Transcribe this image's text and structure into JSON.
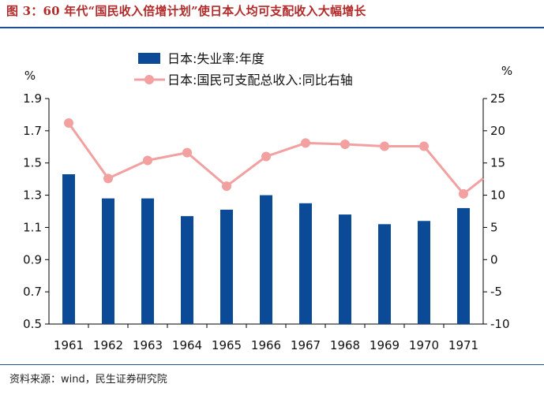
{
  "figure": {
    "title": "图 3：60 年代“国民收入倍增计划”使日本人均可支配收入大幅增长",
    "source": "资料来源：wind，民生证券研究院"
  },
  "chart_data": {
    "type": "bar+line",
    "categories": [
      "1961",
      "1962",
      "1963",
      "1964",
      "1965",
      "1966",
      "1967",
      "1968",
      "1969",
      "1970",
      "1971"
    ],
    "left_axis": {
      "unit_label": "%",
      "ylim": [
        0.5,
        1.9
      ],
      "ticks": [
        "0.5",
        "0.7",
        "0.9",
        "1.1",
        "1.3",
        "1.5",
        "1.7",
        "1.9"
      ]
    },
    "right_axis": {
      "unit_label": "%",
      "ylim": [
        -10,
        25
      ],
      "ticks": [
        "-10",
        "-5",
        "0",
        "5",
        "10",
        "15",
        "20",
        "25"
      ]
    },
    "series": [
      {
        "name": "日本:失业率:年度",
        "type": "bar",
        "axis": "left",
        "color": "#0b4a96",
        "values": [
          1.43,
          1.28,
          1.28,
          1.17,
          1.21,
          1.3,
          1.25,
          1.18,
          1.12,
          1.14,
          1.22
        ]
      },
      {
        "name": "日本:国民可支配总收入:同比右轴",
        "type": "line",
        "axis": "right",
        "color": "#f2a0a0",
        "values": [
          21.2,
          12.6,
          15.4,
          16.6,
          11.4,
          16.0,
          18.1,
          17.9,
          17.6,
          17.6,
          10.2
        ],
        "trailing_value": 12.6
      }
    ],
    "legend_position": "top-left",
    "grid": false
  }
}
